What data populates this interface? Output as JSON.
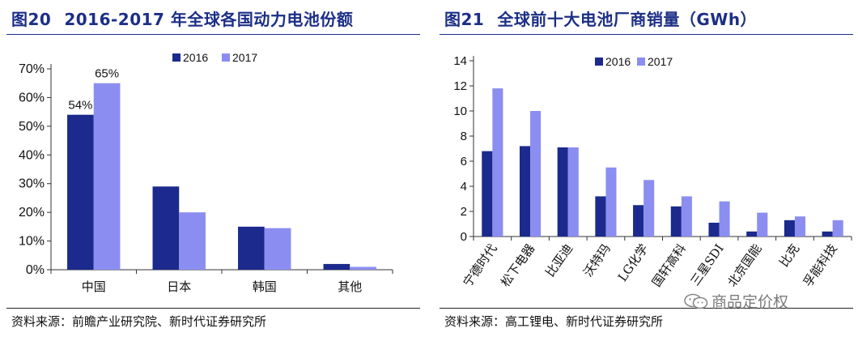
{
  "left": {
    "figure_title_num": "图20",
    "figure_title_text": "2016-2017 年全球各国动力电池份额",
    "source": "资料来源：前瞻产业研究院、新时代证券研究所"
  },
  "right": {
    "figure_title_num": "图21",
    "figure_title_text": "全球前十大电池厂商销量（GWh）",
    "source": "资料来源：高工锂电、新时代证券研究所"
  },
  "watermark": {
    "text": "商品定价权"
  },
  "colors": {
    "series_2016": "#1b2a8c",
    "series_2017": "#8b8ef0",
    "title": "#1c2f86"
  },
  "chart_data": [
    {
      "type": "bar",
      "title": "2016-2017 年全球各国动力电池份额",
      "categories": [
        "中国",
        "日本",
        "韩国",
        "其他"
      ],
      "series": [
        {
          "name": "2016",
          "values": [
            54,
            29,
            15,
            2
          ]
        },
        {
          "name": "2017",
          "values": [
            65,
            20,
            14.5,
            1
          ]
        }
      ],
      "ylim": [
        0,
        70
      ],
      "yticks": [
        0,
        10,
        20,
        30,
        40,
        50,
        60,
        70
      ],
      "ytick_labels": [
        "0%",
        "10%",
        "20%",
        "30%",
        "40%",
        "50%",
        "60%",
        "70%"
      ],
      "data_labels": [
        {
          "series": 0,
          "index": 0,
          "text": "54%"
        },
        {
          "series": 1,
          "index": 0,
          "text": "65%"
        }
      ],
      "legend_position": "top-right",
      "grid": false
    },
    {
      "type": "bar",
      "title": "全球前十大电池厂商销量（GWh）",
      "categories": [
        "宁德时代",
        "松下电器",
        "比亚迪",
        "沃特玛",
        "LG化学",
        "国轩高科",
        "三星SDI",
        "北京国能",
        "比克",
        "孚能科技"
      ],
      "series": [
        {
          "name": "2016",
          "values": [
            6.8,
            7.2,
            7.1,
            3.2,
            2.5,
            2.4,
            1.1,
            0.4,
            1.3,
            0.4
          ]
        },
        {
          "name": "2017",
          "values": [
            11.8,
            10.0,
            7.1,
            5.5,
            4.5,
            3.2,
            2.8,
            1.9,
            1.6,
            1.3
          ]
        }
      ],
      "ylim": [
        0,
        14
      ],
      "yticks": [
        0,
        2,
        4,
        6,
        8,
        10,
        12,
        14
      ],
      "ytick_labels": [
        "0",
        "2",
        "4",
        "6",
        "8",
        "10",
        "12",
        "14"
      ],
      "legend_position": "top",
      "grid": false
    }
  ]
}
